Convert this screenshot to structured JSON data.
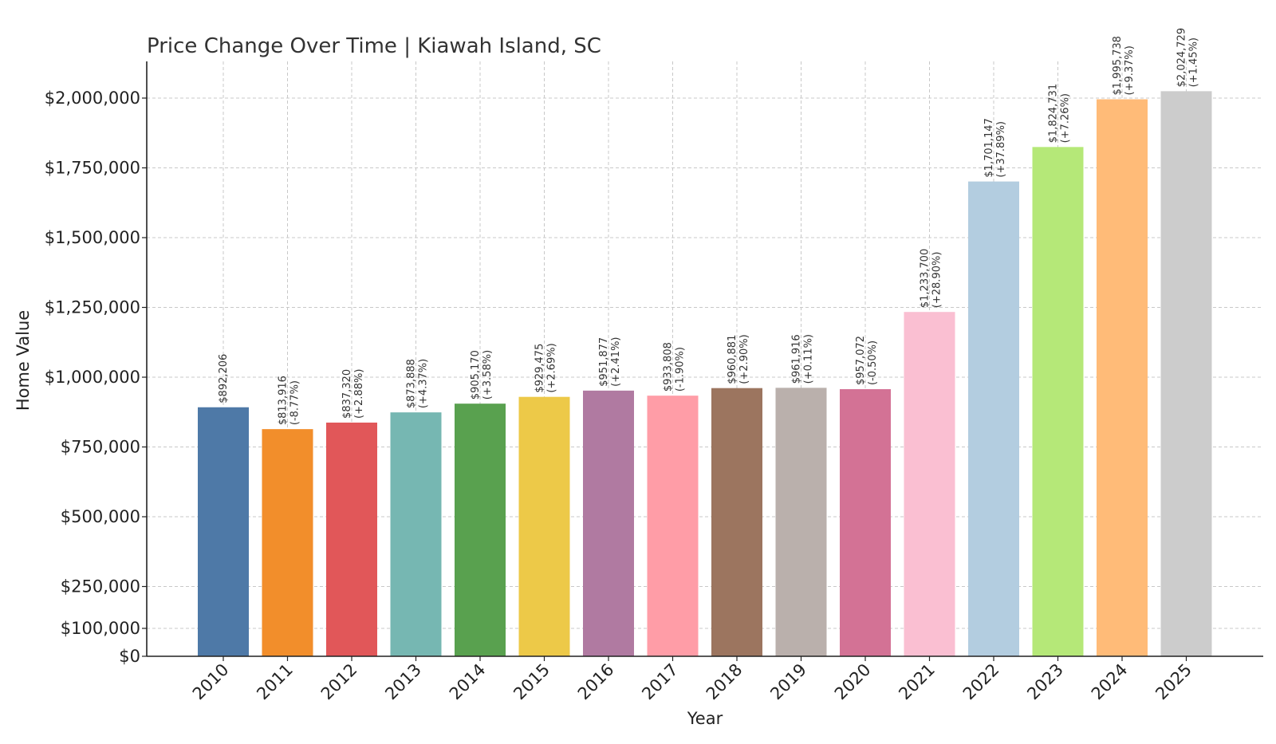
{
  "chart_data": {
    "type": "bar",
    "title": "Price Change Over Time | Kiawah Island, SC",
    "xlabel": "Year",
    "ylabel": "Home Value",
    "ylim": [
      0,
      2125000
    ],
    "grid": true,
    "categories": [
      "2010",
      "2011",
      "2012",
      "2013",
      "2014",
      "2015",
      "2016",
      "2017",
      "2018",
      "2019",
      "2020",
      "2021",
      "2022",
      "2023",
      "2024",
      "2025"
    ],
    "values": [
      892206,
      813916,
      837320,
      873888,
      905170,
      929475,
      951877,
      933808,
      960881,
      961916,
      957072,
      1233700,
      1701147,
      1824731,
      1995738,
      2024729
    ],
    "value_labels": [
      "$892,206",
      "$813,916",
      "$837,320",
      "$873,888",
      "$905,170",
      "$929,475",
      "$951,877",
      "$933,808",
      "$960,881",
      "$961,916",
      "$957,072",
      "$1,233,700",
      "$1,701,147",
      "$1,824,731",
      "$1,995,738",
      "$2,024,729"
    ],
    "change_labels": [
      "",
      "(-8.77%)",
      "(+2.88%)",
      "(+4.37%)",
      "(+3.58%)",
      "(+2.69%)",
      "(+2.41%)",
      "(-1.90%)",
      "(+2.90%)",
      "(+0.11%)",
      "(-0.50%)",
      "(+28.90%)",
      "(+37.89%)",
      "(+7.26%)",
      "(+9.37%)",
      "(+1.45%)"
    ],
    "colors": [
      "#4e79a7",
      "#f28e2b",
      "#e15759",
      "#76b7b2",
      "#59a14f",
      "#edc948",
      "#b07aa1",
      "#ff9da7",
      "#9c755f",
      "#bab0ac",
      "#d37295",
      "#fabfd2",
      "#b3cde0",
      "#b5e878",
      "#ffbb78",
      "#cccccc"
    ],
    "yticks": [
      0,
      100000,
      250000,
      500000,
      750000,
      1000000,
      1250000,
      1500000,
      1750000,
      2000000
    ],
    "ytick_labels": [
      "$0",
      "$100,000",
      "$250,000",
      "$500,000",
      "$750,000",
      "$1,000,000",
      "$1,250,000",
      "$1,500,000",
      "$1,750,000",
      "$2,000,000"
    ]
  }
}
